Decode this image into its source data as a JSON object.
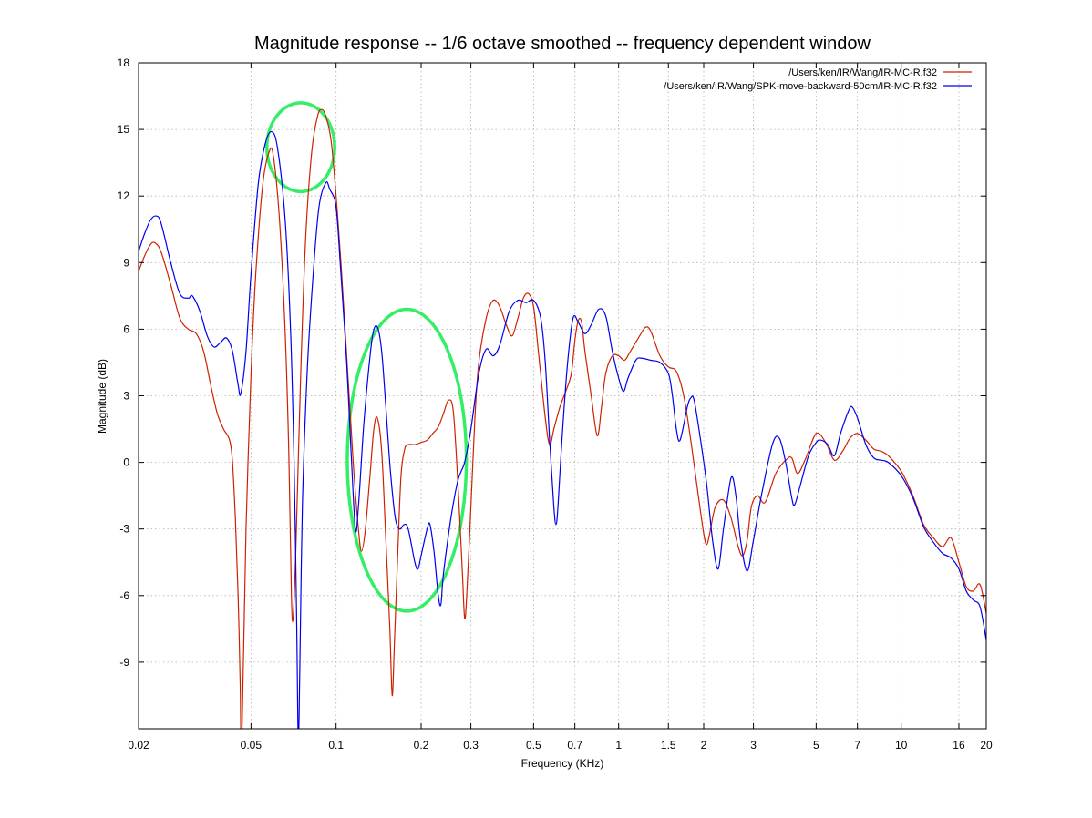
{
  "chart_data": {
    "type": "line",
    "title": "Magnitude response -- 1/6 octave smoothed -- frequency dependent window",
    "xlabel": "Frequency (KHz)",
    "ylabel": "Magnitude (dB)",
    "xscale": "log",
    "xlim": [
      0.02,
      20
    ],
    "ylim": [
      -12,
      18
    ],
    "x_ticks": [
      0.02,
      0.05,
      0.1,
      0.2,
      0.3,
      0.5,
      0.7,
      1,
      1.5,
      2,
      3,
      5,
      7,
      10,
      16,
      20
    ],
    "x_tick_labels": [
      "0.02",
      "0.05",
      "0.1",
      "0.2",
      "0.3",
      "0.5",
      "0.7",
      "1",
      "1.5",
      "2",
      "3",
      "5",
      "7",
      "10",
      "16",
      "20"
    ],
    "y_ticks": [
      -9,
      -6,
      -3,
      0,
      3,
      6,
      9,
      12,
      15,
      18
    ],
    "y_tick_labels": [
      "-9",
      "-6",
      "-3",
      "0",
      "3",
      "6",
      "9",
      "12",
      "15",
      "18"
    ],
    "grid": true,
    "legend_position": "top-right",
    "series": [
      {
        "name": "/Users/ken/IR/Wang/IR-MC-R.f32",
        "color": "#cc2200",
        "points": [
          [
            0.02,
            8.6
          ],
          [
            0.021,
            9.3
          ],
          [
            0.022,
            9.8
          ],
          [
            0.0228,
            9.9
          ],
          [
            0.024,
            9.5
          ],
          [
            0.026,
            8.0
          ],
          [
            0.028,
            6.5
          ],
          [
            0.03,
            6.0
          ],
          [
            0.032,
            5.8
          ],
          [
            0.034,
            5.0
          ],
          [
            0.036,
            3.5
          ],
          [
            0.038,
            2.2
          ],
          [
            0.04,
            1.5
          ],
          [
            0.042,
            1.0
          ],
          [
            0.043,
            0.0
          ],
          [
            0.044,
            -2.5
          ],
          [
            0.045,
            -6.0
          ],
          [
            0.0458,
            -10.0
          ],
          [
            0.0462,
            -13.0
          ],
          [
            0.047,
            -9.0
          ],
          [
            0.048,
            -3.0
          ],
          [
            0.05,
            4.0
          ],
          [
            0.052,
            8.5
          ],
          [
            0.055,
            12.5
          ],
          [
            0.058,
            14.0
          ],
          [
            0.06,
            13.8
          ],
          [
            0.063,
            11.0
          ],
          [
            0.066,
            6.0
          ],
          [
            0.068,
            0.5
          ],
          [
            0.0695,
            -6.0
          ],
          [
            0.0705,
            -7.0
          ],
          [
            0.072,
            -4.0
          ],
          [
            0.075,
            4.0
          ],
          [
            0.078,
            10.0
          ],
          [
            0.082,
            14.0
          ],
          [
            0.086,
            15.6
          ],
          [
            0.089,
            15.9
          ],
          [
            0.092,
            15.6
          ],
          [
            0.096,
            14.5
          ],
          [
            0.1,
            12.0
          ],
          [
            0.104,
            9.0
          ],
          [
            0.11,
            4.0
          ],
          [
            0.115,
            0.0
          ],
          [
            0.12,
            -3.0
          ],
          [
            0.123,
            -4.0
          ],
          [
            0.127,
            -3.0
          ],
          [
            0.132,
            -0.5
          ],
          [
            0.136,
            1.5
          ],
          [
            0.14,
            2.0
          ],
          [
            0.145,
            0.5
          ],
          [
            0.15,
            -3.5
          ],
          [
            0.155,
            -7.5
          ],
          [
            0.158,
            -10.5
          ],
          [
            0.161,
            -8.0
          ],
          [
            0.166,
            -3.5
          ],
          [
            0.17,
            -0.5
          ],
          [
            0.175,
            0.6
          ],
          [
            0.18,
            0.8
          ],
          [
            0.19,
            0.8
          ],
          [
            0.2,
            0.9
          ],
          [
            0.21,
            1.0
          ],
          [
            0.22,
            1.3
          ],
          [
            0.23,
            1.6
          ],
          [
            0.24,
            2.2
          ],
          [
            0.25,
            2.8
          ],
          [
            0.26,
            2.3
          ],
          [
            0.27,
            -1.0
          ],
          [
            0.28,
            -5.0
          ],
          [
            0.285,
            -7.0
          ],
          [
            0.29,
            -6.0
          ],
          [
            0.3,
            -2.0
          ],
          [
            0.31,
            2.0
          ],
          [
            0.32,
            4.5
          ],
          [
            0.34,
            6.5
          ],
          [
            0.36,
            7.3
          ],
          [
            0.38,
            7.0
          ],
          [
            0.4,
            6.2
          ],
          [
            0.42,
            5.7
          ],
          [
            0.44,
            6.5
          ],
          [
            0.46,
            7.4
          ],
          [
            0.48,
            7.6
          ],
          [
            0.5,
            7.0
          ],
          [
            0.52,
            5.0
          ],
          [
            0.55,
            2.0
          ],
          [
            0.57,
            0.8
          ],
          [
            0.59,
            1.5
          ],
          [
            0.62,
            2.5
          ],
          [
            0.65,
            3.2
          ],
          [
            0.68,
            4.0
          ],
          [
            0.7,
            5.5
          ],
          [
            0.72,
            6.4
          ],
          [
            0.74,
            6.3
          ],
          [
            0.76,
            5.0
          ],
          [
            0.8,
            3.0
          ],
          [
            0.84,
            1.2
          ],
          [
            0.87,
            2.5
          ],
          [
            0.9,
            4.0
          ],
          [
            0.95,
            4.8
          ],
          [
            1.0,
            4.8
          ],
          [
            1.05,
            4.6
          ],
          [
            1.1,
            5.0
          ],
          [
            1.2,
            5.8
          ],
          [
            1.25,
            6.1
          ],
          [
            1.3,
            5.9
          ],
          [
            1.4,
            4.8
          ],
          [
            1.5,
            4.3
          ],
          [
            1.6,
            4.1
          ],
          [
            1.7,
            3.0
          ],
          [
            1.8,
            1.0
          ],
          [
            1.9,
            -1.2
          ],
          [
            2.0,
            -3.2
          ],
          [
            2.05,
            -3.7
          ],
          [
            2.1,
            -3.2
          ],
          [
            2.2,
            -2.0
          ],
          [
            2.35,
            -1.7
          ],
          [
            2.5,
            -2.5
          ],
          [
            2.65,
            -3.8
          ],
          [
            2.75,
            -4.2
          ],
          [
            2.85,
            -3.5
          ],
          [
            2.95,
            -2.0
          ],
          [
            3.1,
            -1.5
          ],
          [
            3.3,
            -1.8
          ],
          [
            3.6,
            -0.5
          ],
          [
            3.9,
            0.1
          ],
          [
            4.1,
            0.2
          ],
          [
            4.3,
            -0.5
          ],
          [
            4.6,
            0.2
          ],
          [
            5.0,
            1.3
          ],
          [
            5.4,
            0.9
          ],
          [
            5.8,
            0.1
          ],
          [
            6.2,
            0.5
          ],
          [
            6.6,
            1.1
          ],
          [
            7.0,
            1.3
          ],
          [
            7.5,
            1.0
          ],
          [
            8.0,
            0.6
          ],
          [
            8.5,
            0.5
          ],
          [
            9.0,
            0.3
          ],
          [
            10.0,
            -0.4
          ],
          [
            11.0,
            -1.5
          ],
          [
            12.0,
            -2.8
          ],
          [
            13.0,
            -3.4
          ],
          [
            14.0,
            -3.8
          ],
          [
            15.0,
            -3.4
          ],
          [
            16.0,
            -4.5
          ],
          [
            17.0,
            -5.6
          ],
          [
            18.0,
            -5.8
          ],
          [
            19.0,
            -5.5
          ],
          [
            20.0,
            -6.8
          ]
        ]
      },
      {
        "name": "/Users/ken/IR/Wang/SPK-move-backward-50cm/IR-MC-R.f32",
        "color": "#0000ee",
        "points": [
          [
            0.02,
            9.5
          ],
          [
            0.021,
            10.3
          ],
          [
            0.022,
            10.9
          ],
          [
            0.023,
            11.1
          ],
          [
            0.024,
            10.8
          ],
          [
            0.026,
            9.0
          ],
          [
            0.028,
            7.6
          ],
          [
            0.03,
            7.4
          ],
          [
            0.031,
            7.5
          ],
          [
            0.033,
            6.8
          ],
          [
            0.035,
            5.7
          ],
          [
            0.037,
            5.2
          ],
          [
            0.039,
            5.4
          ],
          [
            0.041,
            5.6
          ],
          [
            0.043,
            5.0
          ],
          [
            0.045,
            3.5
          ],
          [
            0.046,
            3.1
          ],
          [
            0.048,
            5.0
          ],
          [
            0.05,
            8.5
          ],
          [
            0.053,
            12.5
          ],
          [
            0.056,
            14.3
          ],
          [
            0.059,
            14.9
          ],
          [
            0.062,
            14.2
          ],
          [
            0.066,
            11.0
          ],
          [
            0.069,
            6.0
          ],
          [
            0.071,
            0.0
          ],
          [
            0.0725,
            -7.0
          ],
          [
            0.0735,
            -12.5
          ],
          [
            0.0745,
            -9.0
          ],
          [
            0.076,
            -2.0
          ],
          [
            0.079,
            4.0
          ],
          [
            0.083,
            8.5
          ],
          [
            0.087,
            11.5
          ],
          [
            0.092,
            12.6
          ],
          [
            0.095,
            12.3
          ],
          [
            0.1,
            11.5
          ],
          [
            0.104,
            8.5
          ],
          [
            0.109,
            4.5
          ],
          [
            0.113,
            0.5
          ],
          [
            0.117,
            -3.0
          ],
          [
            0.12,
            -2.0
          ],
          [
            0.125,
            1.5
          ],
          [
            0.13,
            4.0
          ],
          [
            0.135,
            5.8
          ],
          [
            0.14,
            6.1
          ],
          [
            0.145,
            5.0
          ],
          [
            0.15,
            2.5
          ],
          [
            0.156,
            -0.5
          ],
          [
            0.162,
            -2.5
          ],
          [
            0.168,
            -3.0
          ],
          [
            0.174,
            -2.8
          ],
          [
            0.18,
            -3.0
          ],
          [
            0.19,
            -4.5
          ],
          [
            0.195,
            -4.8
          ],
          [
            0.2,
            -4.2
          ],
          [
            0.21,
            -3.0
          ],
          [
            0.215,
            -2.8
          ],
          [
            0.222,
            -4.0
          ],
          [
            0.23,
            -6.0
          ],
          [
            0.235,
            -6.4
          ],
          [
            0.24,
            -5.0
          ],
          [
            0.255,
            -2.5
          ],
          [
            0.27,
            -0.8
          ],
          [
            0.285,
            0.0
          ],
          [
            0.3,
            1.5
          ],
          [
            0.32,
            4.0
          ],
          [
            0.34,
            5.1
          ],
          [
            0.36,
            4.8
          ],
          [
            0.38,
            5.3
          ],
          [
            0.41,
            6.8
          ],
          [
            0.44,
            7.3
          ],
          [
            0.47,
            7.2
          ],
          [
            0.5,
            7.3
          ],
          [
            0.53,
            6.5
          ],
          [
            0.55,
            4.5
          ],
          [
            0.57,
            1.0
          ],
          [
            0.59,
            -2.0
          ],
          [
            0.6,
            -2.8
          ],
          [
            0.61,
            -2.0
          ],
          [
            0.63,
            1.0
          ],
          [
            0.66,
            4.5
          ],
          [
            0.69,
            6.5
          ],
          [
            0.72,
            6.3
          ],
          [
            0.76,
            5.8
          ],
          [
            0.8,
            6.2
          ],
          [
            0.85,
            6.9
          ],
          [
            0.9,
            6.6
          ],
          [
            0.95,
            5.0
          ],
          [
            1.0,
            3.8
          ],
          [
            1.04,
            3.2
          ],
          [
            1.08,
            3.8
          ],
          [
            1.15,
            4.6
          ],
          [
            1.2,
            4.7
          ],
          [
            1.3,
            4.6
          ],
          [
            1.4,
            4.5
          ],
          [
            1.5,
            4.0
          ],
          [
            1.55,
            3.0
          ],
          [
            1.6,
            1.5
          ],
          [
            1.65,
            1.0
          ],
          [
            1.75,
            2.5
          ],
          [
            1.8,
            2.9
          ],
          [
            1.85,
            2.8
          ],
          [
            1.95,
            1.0
          ],
          [
            2.05,
            -1.0
          ],
          [
            2.15,
            -3.5
          ],
          [
            2.25,
            -4.8
          ],
          [
            2.35,
            -3.0
          ],
          [
            2.5,
            -0.7
          ],
          [
            2.6,
            -1.5
          ],
          [
            2.7,
            -3.5
          ],
          [
            2.85,
            -4.9
          ],
          [
            3.0,
            -3.5
          ],
          [
            3.2,
            -1.5
          ],
          [
            3.5,
            0.8
          ],
          [
            3.7,
            1.1
          ],
          [
            3.9,
            0.0
          ],
          [
            4.1,
            -1.6
          ],
          [
            4.2,
            -1.9
          ],
          [
            4.4,
            -1.0
          ],
          [
            4.7,
            0.3
          ],
          [
            5.0,
            0.9
          ],
          [
            5.2,
            1.0
          ],
          [
            5.5,
            0.8
          ],
          [
            5.8,
            0.3
          ],
          [
            6.1,
            1.3
          ],
          [
            6.5,
            2.3
          ],
          [
            6.7,
            2.5
          ],
          [
            7.0,
            2.0
          ],
          [
            7.5,
            0.8
          ],
          [
            8.0,
            0.2
          ],
          [
            8.5,
            0.1
          ],
          [
            9.0,
            0.0
          ],
          [
            10.0,
            -0.6
          ],
          [
            11.0,
            -1.6
          ],
          [
            12.0,
            -2.9
          ],
          [
            13.0,
            -3.6
          ],
          [
            14.0,
            -4.1
          ],
          [
            15.0,
            -4.3
          ],
          [
            16.0,
            -4.8
          ],
          [
            17.0,
            -5.8
          ],
          [
            18.0,
            -6.2
          ],
          [
            19.0,
            -6.5
          ],
          [
            20.0,
            -8.0
          ]
        ]
      }
    ],
    "annotations": [
      {
        "type": "ellipse",
        "color": "#33ee66",
        "cx": 0.075,
        "cy": 14.2,
        "x_from": 0.057,
        "x_to": 0.099,
        "y_half": 2.0
      },
      {
        "type": "ellipse",
        "color": "#33ee66",
        "cx": 0.178,
        "cy": 0.1,
        "x_from": 0.1135,
        "x_to": 0.2995,
        "y_half": 6.8
      }
    ]
  }
}
